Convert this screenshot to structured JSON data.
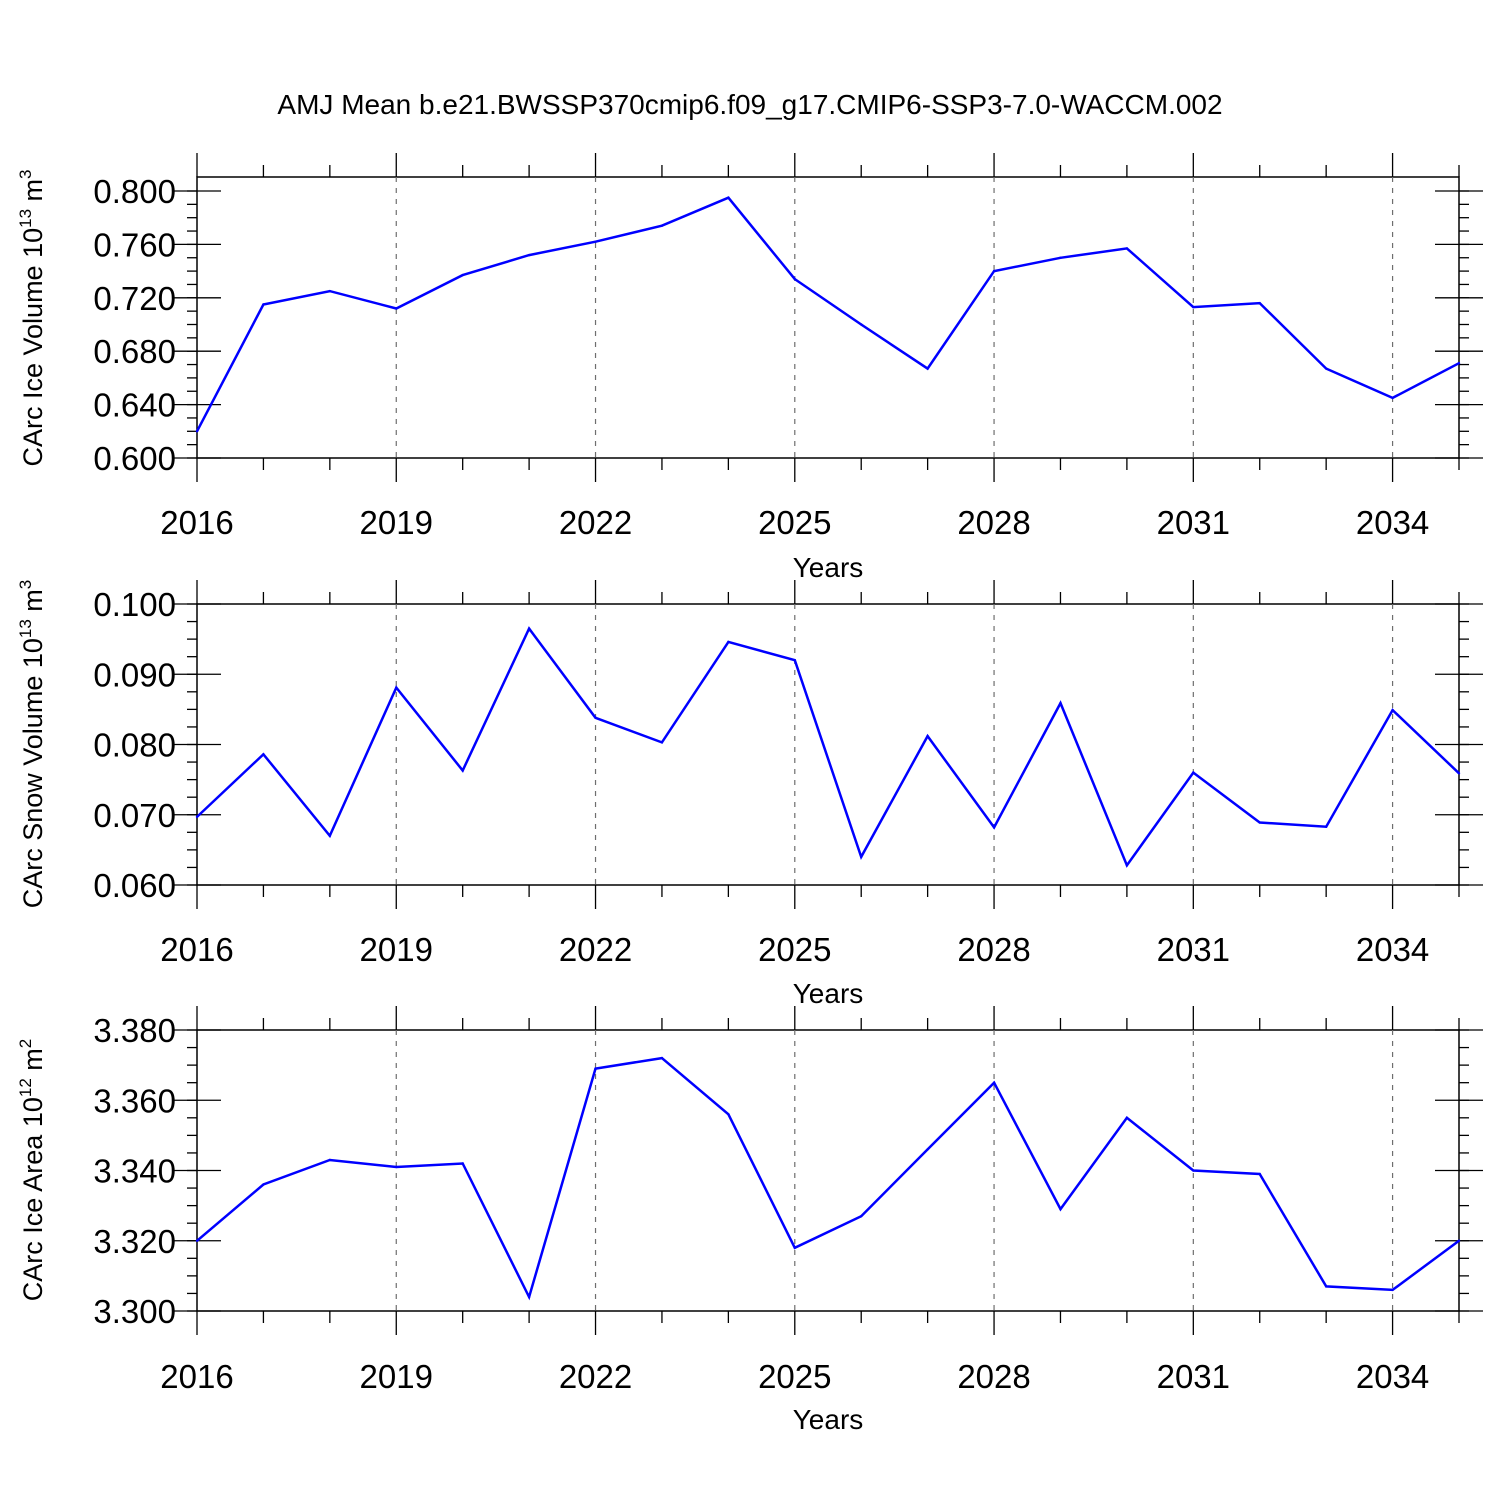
{
  "title": "AMJ Mean b.e21.BWSSP370cmip6.f09_g17.CMIP6-SSP3-7.0-WACCM.002",
  "colors": {
    "line": "#0000ff",
    "axes": "#000000",
    "grid": "#6e6e6e"
  },
  "chart_data": [
    {
      "type": "line",
      "ylabel": {
        "text": "CArc Ice Volume 10",
        "exponent": "13",
        "unit": " m",
        "unit_exponent": "3"
      },
      "xlabel": "Years",
      "xlim": [
        2016,
        2035
      ],
      "ylim": [
        0.6,
        0.81
      ],
      "x_tick_labels": [
        "2016",
        "2019",
        "2022",
        "2025",
        "2028",
        "2031",
        "2034"
      ],
      "y_tick_labels": [
        "0.600",
        "0.640",
        "0.680",
        "0.720",
        "0.760",
        "0.800"
      ],
      "grid": "vertical dashed at labeled years",
      "x": [
        2016,
        2017,
        2018,
        2019,
        2020,
        2021,
        2022,
        2023,
        2024,
        2025,
        2026,
        2027,
        2028,
        2029,
        2030,
        2031,
        2032,
        2033,
        2034,
        2035
      ],
      "series": [
        {
          "values": [
            0.62,
            0.715,
            0.725,
            0.712,
            0.737,
            0.752,
            0.762,
            0.774,
            0.795,
            0.734,
            0.7,
            0.667,
            0.74,
            0.75,
            0.757,
            0.713,
            0.716,
            0.667,
            0.645,
            0.671
          ]
        }
      ]
    },
    {
      "type": "line",
      "ylabel": {
        "text": "CArc Snow Volume 10",
        "exponent": "13",
        "unit": " m",
        "unit_exponent": "3"
      },
      "xlabel": "Years",
      "xlim": [
        2016,
        2035
      ],
      "ylim": [
        0.06,
        0.1
      ],
      "x_tick_labels": [
        "2016",
        "2019",
        "2022",
        "2025",
        "2028",
        "2031",
        "2034"
      ],
      "y_tick_labels": [
        "0.060",
        "0.070",
        "0.080",
        "0.090",
        "0.100"
      ],
      "grid": "vertical dashed at labeled years",
      "x": [
        2016,
        2017,
        2018,
        2019,
        2020,
        2021,
        2022,
        2023,
        2024,
        2025,
        2026,
        2027,
        2028,
        2029,
        2030,
        2031,
        2032,
        2033,
        2034,
        2035
      ],
      "series": [
        {
          "values": [
            0.0697,
            0.0786,
            0.067,
            0.0881,
            0.0763,
            0.0965,
            0.0838,
            0.0803,
            0.0946,
            0.092,
            0.064,
            0.0812,
            0.0682,
            0.0859,
            0.0628,
            0.076,
            0.0689,
            0.0683,
            0.0849,
            0.0759
          ]
        }
      ]
    },
    {
      "type": "line",
      "ylabel": {
        "text": "CArc Ice Area 10",
        "exponent": "12",
        "unit": " m",
        "unit_exponent": "2"
      },
      "xlabel": "Years",
      "xlim": [
        2016,
        2035
      ],
      "ylim": [
        3.3,
        3.38
      ],
      "x_tick_labels": [
        "2016",
        "2019",
        "2022",
        "2025",
        "2028",
        "2031",
        "2034"
      ],
      "y_tick_labels": [
        "3.300",
        "3.320",
        "3.340",
        "3.360",
        "3.380"
      ],
      "grid": "vertical dashed at labeled years",
      "x": [
        2016,
        2017,
        2018,
        2019,
        2020,
        2021,
        2022,
        2023,
        2024,
        2025,
        2026,
        2027,
        2028,
        2029,
        2030,
        2031,
        2032,
        2033,
        2034,
        2035
      ],
      "series": [
        {
          "values": [
            3.32,
            3.336,
            3.343,
            3.341,
            3.342,
            3.304,
            3.369,
            3.372,
            3.356,
            3.318,
            3.327,
            3.346,
            3.365,
            3.329,
            3.355,
            3.34,
            3.339,
            3.307,
            3.306,
            3.32
          ]
        }
      ]
    }
  ]
}
